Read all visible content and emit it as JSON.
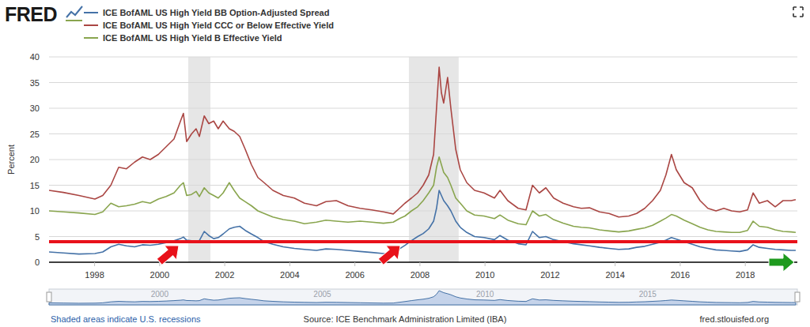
{
  "chart_data": {
    "type": "line",
    "logo": "FRED",
    "y_label": "Percent",
    "source_note": "Shaded areas indicate U.S. recessions",
    "source": "Source: ICE Benchmark Administration Limited (IBA)",
    "site": "fred.stlouisfed.org",
    "grid": true,
    "legend": "top-left",
    "xlim": [
      1996.6,
      2019.6
    ],
    "xticks": [
      1998,
      2000,
      2002,
      2004,
      2006,
      2008,
      2010,
      2012,
      2014,
      2016,
      2018
    ],
    "ylim": [
      0,
      40
    ],
    "yticks": [
      0,
      5,
      10,
      15,
      20,
      25,
      30,
      35,
      40
    ],
    "navigator_xticks": [
      2000,
      2005,
      2010,
      2015
    ],
    "recessions": [
      [
        2000.88,
        2001.56
      ],
      [
        2007.66,
        2009.19
      ]
    ],
    "reference_lines": [
      {
        "value": 4,
        "color": "#e8111a"
      }
    ],
    "x": [
      1996.6,
      1997.04,
      1997.52,
      1998.01,
      1998.25,
      1998.5,
      1998.74,
      1998.98,
      1999.23,
      1999.47,
      1999.71,
      1999.96,
      2000.2,
      2000.44,
      2000.64,
      2000.73,
      2000.83,
      2000.98,
      2001.12,
      2001.22,
      2001.37,
      2001.51,
      2001.66,
      2001.8,
      2001.95,
      2002.14,
      2002.29,
      2002.46,
      2002.63,
      2002.82,
      2003.02,
      2003.21,
      2003.48,
      2003.8,
      2004.14,
      2004.45,
      2004.82,
      2005.11,
      2005.43,
      2005.79,
      2006.16,
      2006.52,
      2006.88,
      2007.18,
      2007.37,
      2007.54,
      2007.74,
      2007.93,
      2008.1,
      2008.27,
      2008.42,
      2008.51,
      2008.59,
      2008.66,
      2008.73,
      2008.85,
      2008.95,
      2009.1,
      2009.24,
      2009.44,
      2009.68,
      2009.97,
      2010.29,
      2010.46,
      2010.7,
      2011.02,
      2011.26,
      2011.46,
      2011.67,
      2011.87,
      2012.11,
      2012.4,
      2012.72,
      2012.96,
      2013.21,
      2013.52,
      2013.81,
      2014.11,
      2014.42,
      2014.66,
      2014.91,
      2015.15,
      2015.39,
      2015.56,
      2015.73,
      2015.88,
      2016.12,
      2016.37,
      2016.61,
      2016.85,
      2017.1,
      2017.34,
      2017.58,
      2017.83,
      2018.07,
      2018.24,
      2018.43,
      2018.68,
      2018.92,
      2019.16,
      2019.41,
      2019.55
    ],
    "series": [
      {
        "name": "ICE BofAML US High Yield BB Option-Adjusted Spread",
        "color": "#4572a7",
        "values": [
          2.0,
          1.8,
          1.6,
          1.7,
          2.0,
          3.0,
          3.5,
          3.2,
          3.0,
          3.4,
          3.3,
          3.5,
          3.8,
          4.2,
          4.6,
          4.9,
          4.3,
          4.2,
          4.0,
          4.2,
          6.0,
          5.2,
          4.6,
          4.8,
          5.5,
          6.5,
          6.8,
          7.0,
          6.2,
          5.5,
          4.8,
          4.0,
          3.5,
          3.0,
          2.7,
          2.5,
          2.3,
          2.6,
          2.5,
          2.3,
          2.1,
          1.9,
          1.7,
          1.8,
          2.6,
          3.3,
          4.2,
          5.0,
          5.6,
          6.5,
          8.0,
          10.5,
          14.0,
          13.0,
          12.0,
          11.0,
          10.0,
          8.0,
          6.8,
          5.8,
          5.0,
          4.8,
          4.4,
          5.2,
          4.3,
          3.6,
          3.4,
          6.0,
          4.8,
          5.0,
          4.4,
          4.0,
          3.6,
          3.4,
          3.2,
          2.9,
          2.7,
          2.5,
          2.6,
          2.9,
          3.1,
          3.5,
          3.9,
          4.3,
          4.8,
          4.5,
          4.0,
          3.5,
          3.0,
          2.7,
          2.4,
          2.3,
          2.2,
          2.1,
          2.4,
          3.4,
          2.9,
          2.7,
          2.5,
          2.4,
          2.3,
          2.3
        ]
      },
      {
        "name": "ICE BofAML US High Yield CCC or Below Effective Yield",
        "color": "#aa4643",
        "values": [
          14.0,
          13.6,
          13.0,
          12.3,
          13.0,
          15.0,
          18.5,
          18.2,
          19.5,
          20.5,
          20.0,
          21.0,
          22.5,
          24.0,
          27.5,
          29.0,
          23.5,
          25.0,
          26.0,
          24.5,
          28.5,
          27.0,
          27.5,
          26.0,
          27.5,
          26.0,
          25.5,
          24.5,
          22.0,
          19.0,
          16.5,
          15.5,
          14.0,
          13.0,
          12.5,
          11.5,
          11.0,
          11.8,
          12.0,
          11.0,
          10.5,
          10.2,
          9.8,
          9.4,
          10.5,
          11.5,
          12.5,
          13.5,
          15.0,
          17.0,
          21.0,
          30.0,
          38.0,
          33.0,
          31.0,
          36.0,
          30.0,
          22.0,
          18.0,
          15.5,
          14.0,
          13.5,
          12.5,
          14.0,
          12.0,
          10.5,
          10.2,
          15.0,
          13.5,
          14.5,
          12.5,
          11.5,
          10.8,
          10.5,
          10.6,
          9.8,
          9.5,
          8.8,
          9.0,
          9.5,
          10.5,
          12.0,
          14.0,
          17.0,
          21.0,
          18.0,
          15.5,
          14.5,
          12.0,
          10.5,
          10.0,
          10.5,
          10.0,
          9.8,
          10.2,
          13.5,
          11.5,
          12.0,
          10.8,
          12.0,
          12.0,
          12.2
        ]
      },
      {
        "name": "ICE BofAML US High Yield B Effective Yield",
        "color": "#89a54e",
        "values": [
          10.0,
          9.8,
          9.6,
          9.3,
          9.8,
          11.5,
          10.8,
          11.0,
          11.3,
          11.8,
          11.5,
          12.3,
          12.8,
          13.5,
          15.0,
          15.5,
          13.0,
          13.2,
          13.8,
          12.8,
          14.5,
          13.5,
          13.0,
          12.5,
          13.5,
          15.5,
          14.0,
          12.5,
          11.8,
          11.0,
          10.0,
          9.5,
          8.8,
          8.3,
          8.0,
          7.5,
          7.8,
          8.2,
          8.0,
          7.8,
          8.0,
          7.8,
          7.6,
          7.8,
          8.5,
          9.0,
          10.0,
          10.8,
          12.0,
          13.5,
          15.0,
          18.5,
          20.5,
          19.0,
          17.5,
          16.5,
          15.0,
          12.5,
          11.5,
          10.0,
          9.2,
          9.0,
          8.5,
          9.2,
          8.2,
          7.5,
          7.3,
          10.0,
          9.0,
          9.3,
          8.3,
          7.6,
          7.0,
          6.8,
          6.7,
          6.3,
          6.1,
          5.9,
          6.1,
          6.4,
          6.7,
          7.2,
          8.0,
          8.6,
          9.3,
          9.0,
          8.2,
          7.5,
          6.8,
          6.3,
          6.0,
          5.9,
          5.8,
          5.8,
          6.2,
          8.0,
          7.0,
          6.8,
          6.3,
          6.0,
          5.9,
          5.8
        ]
      }
    ]
  }
}
